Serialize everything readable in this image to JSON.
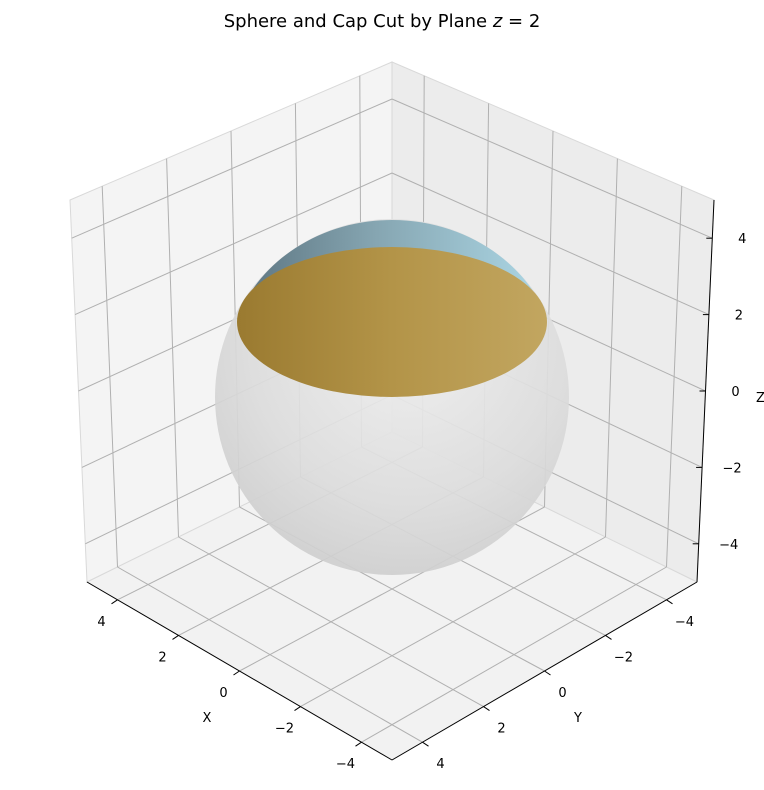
{
  "chart_data": {
    "type": "surface3d",
    "title": "Sphere and Cap Cut by Plane ",
    "title_math": "z = 2",
    "title_math_var": "z",
    "title_math_rest": " = 2",
    "xlabel": "X",
    "ylabel": "Y",
    "zlabel": "Z",
    "xlim": [
      -5,
      5
    ],
    "ylim": [
      -5,
      5
    ],
    "zlim": [
      -5,
      5
    ],
    "x_ticks": [
      4,
      2,
      0,
      -2,
      -4
    ],
    "y_ticks": [
      -4,
      -2,
      0,
      2,
      4
    ],
    "z_ticks": [
      4,
      2,
      0,
      -2,
      -4
    ],
    "x_tick_labels": [
      "4",
      "2",
      "0",
      "−2",
      "−4"
    ],
    "y_tick_labels": [
      "−4",
      "−2",
      "0",
      "2",
      "4"
    ],
    "z_tick_labels": [
      "4",
      "2",
      "0",
      "−2",
      "−4"
    ],
    "grid": true,
    "surfaces": [
      {
        "name": "sphere",
        "radius": 4.5,
        "center": [
          0,
          0,
          0
        ],
        "color": "#cccccc",
        "alpha": 0.5
      },
      {
        "name": "cap",
        "z_min": 2,
        "radius": 4.5,
        "color": "#add8e6"
      },
      {
        "name": "cutting-plane",
        "z": 2,
        "radius": 4.03,
        "color": "#b8963f"
      }
    ]
  }
}
